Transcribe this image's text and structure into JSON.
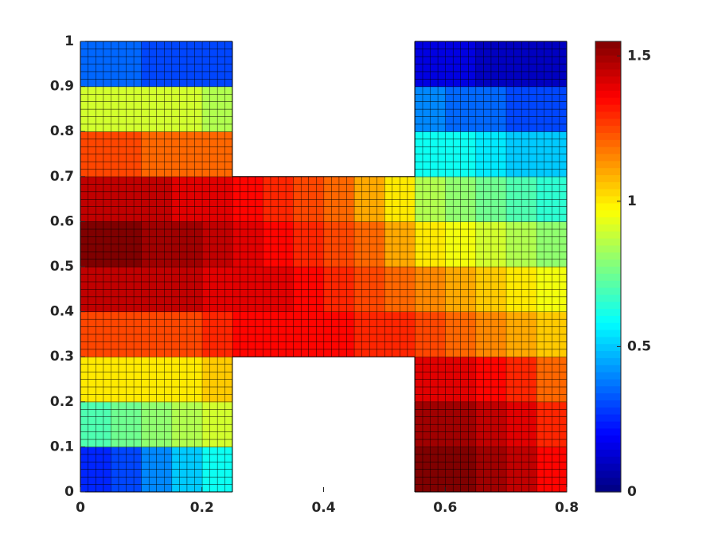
{
  "chart_data": {
    "type": "heatmap",
    "colormap": "jet",
    "xbins": [
      0,
      0.05,
      0.1,
      0.15,
      0.2,
      0.25,
      0.3,
      0.35,
      0.4,
      0.45,
      0.5,
      0.55,
      0.6,
      0.65,
      0.7,
      0.75,
      0.8
    ],
    "ybins": [
      0,
      0.1,
      0.2,
      0.3,
      0.4,
      0.5,
      0.6,
      0.7,
      0.8,
      0.9,
      1
    ],
    "values": [
      [
        0.25,
        0.3,
        0.4,
        0.5,
        0.6,
        null,
        null,
        null,
        null,
        null,
        null,
        1.55,
        1.55,
        1.5,
        1.45,
        1.35
      ],
      [
        0.7,
        0.75,
        0.8,
        0.85,
        0.9,
        null,
        null,
        null,
        null,
        null,
        null,
        1.5,
        1.5,
        1.45,
        1.4,
        1.3
      ],
      [
        1.0,
        1.0,
        1.0,
        1.0,
        1.05,
        null,
        null,
        null,
        null,
        null,
        null,
        1.4,
        1.4,
        1.35,
        1.3,
        1.2
      ],
      [
        1.25,
        1.25,
        1.25,
        1.25,
        1.3,
        1.35,
        1.35,
        1.35,
        1.35,
        1.3,
        1.3,
        1.25,
        1.2,
        1.15,
        1.1,
        1.05
      ],
      [
        1.45,
        1.45,
        1.45,
        1.45,
        1.4,
        1.4,
        1.4,
        1.35,
        1.3,
        1.25,
        1.2,
        1.15,
        1.1,
        1.05,
        1.0,
        0.95
      ],
      [
        1.55,
        1.55,
        1.5,
        1.5,
        1.45,
        1.4,
        1.35,
        1.3,
        1.25,
        1.2,
        1.1,
        1.0,
        0.95,
        0.9,
        0.85,
        0.8
      ],
      [
        1.45,
        1.45,
        1.45,
        1.4,
        1.4,
        1.35,
        1.3,
        1.25,
        1.2,
        1.1,
        1.0,
        0.85,
        0.8,
        0.75,
        0.7,
        0.65
      ],
      [
        1.25,
        1.25,
        1.2,
        1.2,
        1.2,
        null,
        null,
        null,
        null,
        null,
        null,
        0.6,
        0.6,
        0.55,
        0.5,
        0.5
      ],
      [
        0.9,
        0.9,
        0.9,
        0.9,
        0.85,
        null,
        null,
        null,
        null,
        null,
        null,
        0.4,
        0.35,
        0.35,
        0.3,
        0.3
      ],
      [
        0.35,
        0.35,
        0.3,
        0.3,
        0.3,
        null,
        null,
        null,
        null,
        null,
        null,
        0.15,
        0.15,
        0.1,
        0.1,
        0.1
      ]
    ],
    "xlim": [
      0,
      0.8
    ],
    "xticks": [
      0,
      0.2,
      0.4,
      0.6,
      0.8
    ],
    "ylim": [
      0,
      1
    ],
    "yticks": [
      0,
      0.1,
      0.2,
      0.3,
      0.4,
      0.5,
      0.6,
      0.7,
      0.8,
      0.9,
      1
    ],
    "clim": [
      0,
      1.55
    ],
    "cticks": [
      0,
      0.5,
      1,
      1.5
    ]
  }
}
